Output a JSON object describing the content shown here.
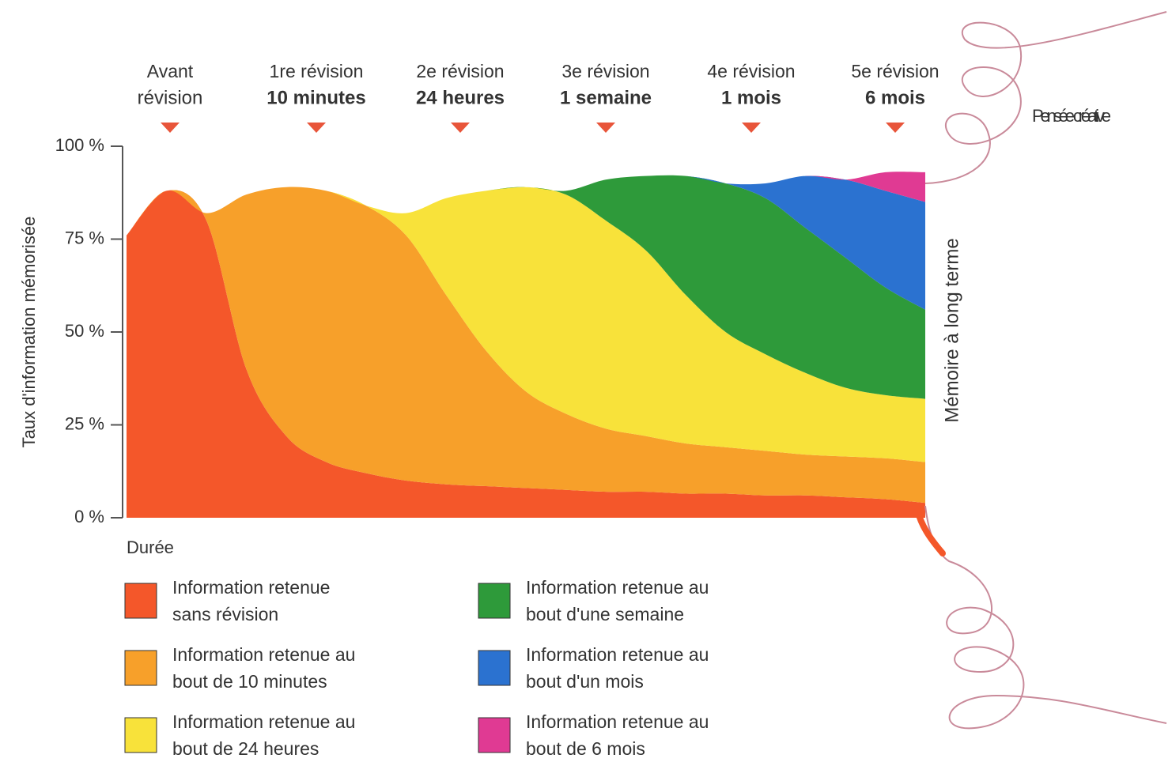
{
  "chart_data": {
    "type": "stacked-area",
    "ylabel": "Taux d'information mémorisée",
    "xlabel": "Durée",
    "right_label": "Mémoire à long terme",
    "side_note": "Pensée créative",
    "reviews": [
      {
        "line1": "Avant",
        "line2": "révision"
      },
      {
        "line1": "1re révision",
        "line2": "10 minutes"
      },
      {
        "line1": "2e révision",
        "line2": "24 heures"
      },
      {
        "line1": "3e révision",
        "line2": "1 semaine"
      },
      {
        "line1": "4e révision",
        "line2": "1 mois"
      },
      {
        "line1": "5e révision",
        "line2": "6 mois"
      }
    ],
    "ylim": [
      0,
      100
    ],
    "yticks": [
      {
        "value": 0,
        "label": "0 %"
      },
      {
        "value": 25,
        "label": "25 %"
      },
      {
        "value": 50,
        "label": "50 %"
      },
      {
        "value": 75,
        "label": "75 %"
      },
      {
        "value": 100,
        "label": "100 %"
      }
    ],
    "categories": [
      null,
      null,
      null,
      null,
      null,
      null,
      null,
      null,
      null,
      null,
      null,
      null,
      null,
      null,
      null,
      null,
      null,
      null,
      null,
      null,
      null
    ],
    "series": [
      {
        "name": "Information retenue sans révision",
        "color": "#f4572a",
        "values": [
          76,
          88,
          80,
          40,
          22,
          15,
          12,
          10,
          9,
          8.5,
          8,
          7.5,
          7,
          7,
          6.5,
          6.5,
          6,
          6,
          5.5,
          5,
          4
        ]
      },
      {
        "name": "Information retenue au bout de 10 minutes",
        "color": "#f7a02a",
        "values": [
          0,
          0,
          2,
          47,
          67,
          73,
          72,
          66,
          51,
          36.5,
          26,
          20.5,
          17,
          15,
          13.5,
          12.5,
          12,
          11,
          11,
          11,
          11
        ]
      },
      {
        "name": "Information retenue au bout de 24 heures",
        "color": "#f8e23a",
        "values": [
          0,
          0,
          0,
          0,
          0,
          0,
          0,
          6,
          26,
          43,
          55,
          59,
          56,
          50,
          40,
          31,
          26,
          22,
          18.5,
          17,
          17
        ]
      },
      {
        "name": "Information retenue au bout d'une semaine",
        "color": "#2e9a3a",
        "values": [
          0,
          0,
          0,
          0,
          0,
          0,
          0,
          0,
          0,
          0,
          0,
          1,
          11,
          20,
          32,
          40,
          42,
          39,
          35,
          29,
          24
        ]
      },
      {
        "name": "Information retenue au bout d'un mois",
        "color": "#2b72d0",
        "values": [
          0,
          0,
          0,
          0,
          0,
          0,
          0,
          0,
          0,
          0,
          0,
          0,
          0,
          0,
          0,
          0,
          4,
          14,
          21,
          26,
          29
        ]
      },
      {
        "name": "Information retenue au bout de 6 mois",
        "color": "#e03a93",
        "values": [
          0,
          0,
          0,
          0,
          0,
          0,
          0,
          0,
          0,
          0,
          0,
          0,
          0,
          0,
          0,
          0,
          0,
          0,
          0,
          5,
          8
        ]
      }
    ]
  }
}
